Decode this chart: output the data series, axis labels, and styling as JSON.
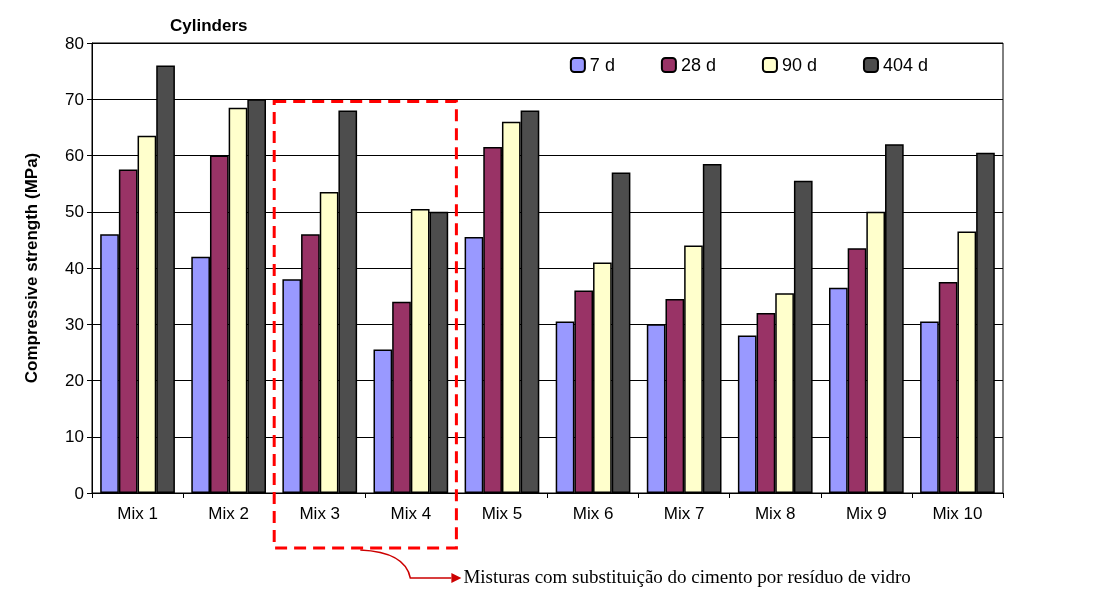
{
  "chart_data": {
    "type": "bar",
    "title": "Cylinders",
    "ylabel": "Compressive strength (MPa)",
    "categories": [
      "Mix 1",
      "Mix 2",
      "Mix 3",
      "Mix 4",
      "Mix 5",
      "Mix 6",
      "Mix 7",
      "Mix 8",
      "Mix 9",
      "Mix 10"
    ],
    "series": [
      {
        "name": "7 d",
        "color": "#9999ff",
        "values": [
          46,
          42,
          38,
          25.5,
          45.5,
          30.5,
          30,
          28,
          36.5,
          30.5
        ]
      },
      {
        "name": "28 d",
        "color": "#993366",
        "values": [
          57.5,
          60,
          46,
          34,
          61.5,
          36,
          34.5,
          32,
          43.5,
          37.5
        ]
      },
      {
        "name": "90 d",
        "color": "#ffffcc",
        "values": [
          63.5,
          68.5,
          53.5,
          50.5,
          66,
          41,
          44,
          35.5,
          50,
          46.5
        ]
      },
      {
        "name": "404 d",
        "color": "#4d4d4d",
        "values": [
          76,
          70,
          68,
          50,
          68,
          57,
          58.5,
          55.5,
          62,
          60.5
        ]
      }
    ],
    "ylim": [
      0,
      80
    ],
    "yticks": [
      0,
      10,
      20,
      30,
      40,
      50,
      60,
      70,
      80
    ],
    "grid": "y",
    "legend": "top right",
    "annotations": [
      "Misturas com substituição do cimento por resíduo de vidro"
    ]
  }
}
